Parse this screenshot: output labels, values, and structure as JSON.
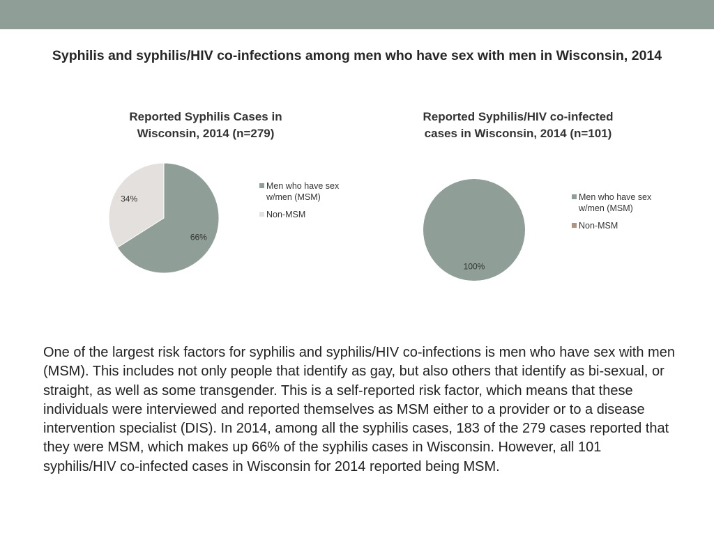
{
  "page": {
    "title": "Syphilis and syphilis/HIV co-infections among men who have sex with men in Wisconsin, 2014",
    "body_text": "One of the largest risk factors for syphilis and syphilis/HIV co-infections is men who have sex with men (MSM). This includes not only people that identify as gay, but also others that identify as bi-sexual, or straight, as well as some transgender. This is a self-reported risk factor, which means that these individuals were interviewed and reported themselves as MSM either to a provider or to a disease intervention specialist (DIS). In 2014, among all the syphilis cases, 183 of the 279 cases reported that they were MSM, which makes up 66% of the syphilis cases in Wisconsin. However, all 101 syphilis/HIV co-infected cases in Wisconsin for 2014 reported being MSM."
  },
  "colors": {
    "top_bar": "#8f9e96",
    "msm": "#8f9e96",
    "non_msm_chart1": "#e3e0dd",
    "non_msm_chart2": "#b09382"
  },
  "chart_data": [
    {
      "type": "pie",
      "title": "Reported Syphilis Cases in Wisconsin, 2014 (n=279)",
      "categories": [
        "Men who have sex w/men (MSM)",
        "Non-MSM"
      ],
      "values": [
        66,
        34
      ],
      "labels": [
        "66%",
        "34%"
      ],
      "colors": [
        "#8f9e96",
        "#e3e0dd"
      ],
      "legend": "right"
    },
    {
      "type": "pie",
      "title": "Reported Syphilis/HIV co-infected cases in Wisconsin, 2014 (n=101)",
      "categories": [
        "Men who have sex w/men (MSM)",
        "Non-MSM"
      ],
      "values": [
        100,
        0
      ],
      "labels": [
        "100%",
        ""
      ],
      "colors": [
        "#8f9e96",
        "#b09382"
      ],
      "legend": "right"
    }
  ]
}
